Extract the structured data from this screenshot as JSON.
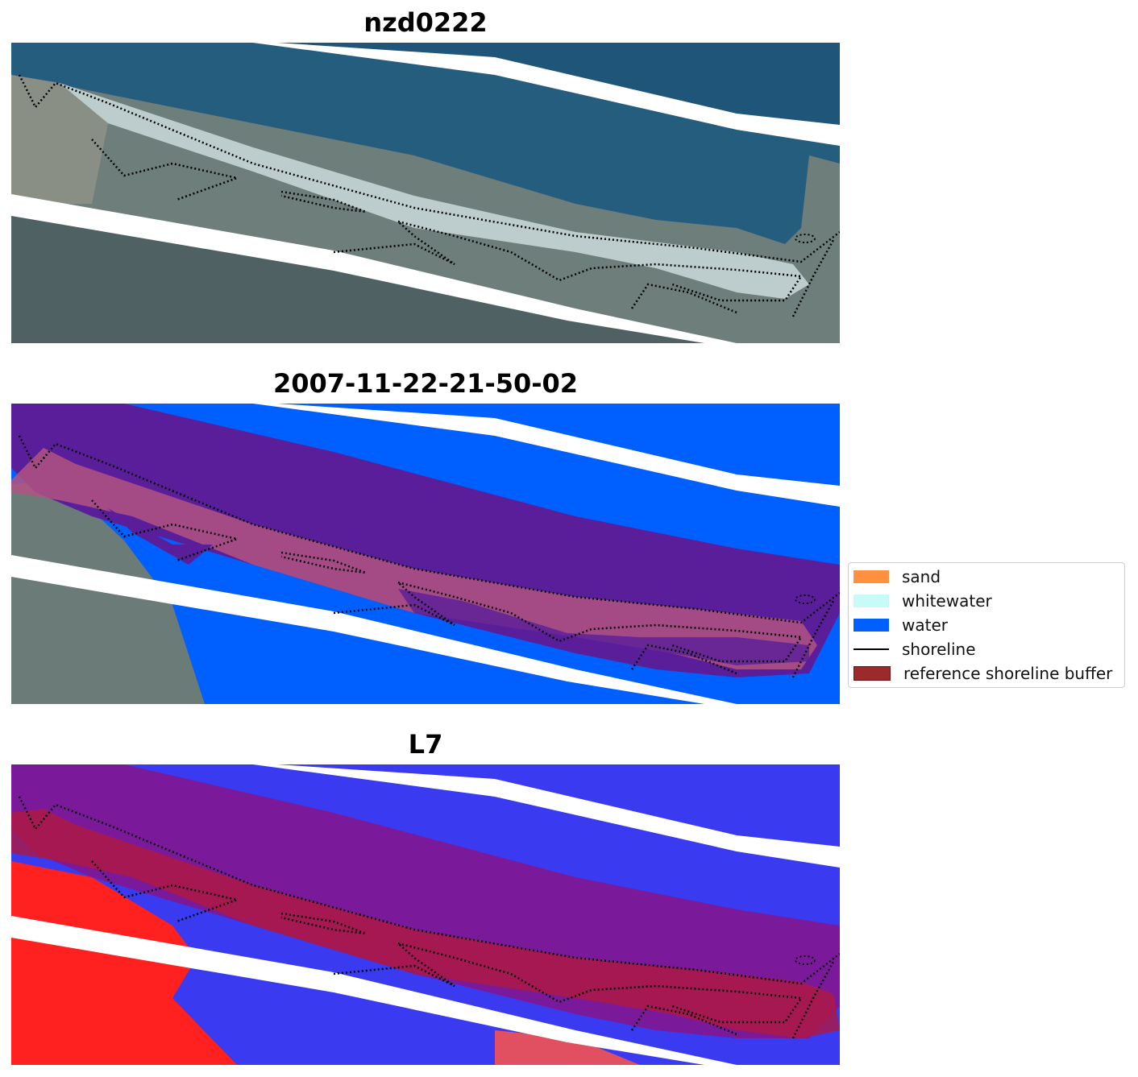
{
  "panels": [
    {
      "title": "nzd0222",
      "kind": "rgb"
    },
    {
      "title": "2007-11-22-21-50-02",
      "kind": "classified"
    },
    {
      "title": "L7",
      "kind": "index"
    }
  ],
  "legend": {
    "items": [
      {
        "label": "sand",
        "color": "#ff9040",
        "type": "patch"
      },
      {
        "label": "whitewater",
        "color": "#c8fbf7",
        "type": "patch"
      },
      {
        "label": "water",
        "color": "#0060ff",
        "type": "patch"
      },
      {
        "label": "shoreline",
        "color": "#000000",
        "type": "line"
      },
      {
        "label": "reference shoreline buffer",
        "color": "#9b2a2a",
        "type": "patch"
      }
    ]
  },
  "colors": {
    "ocean": "#1f5579",
    "land": "#6b7d7a",
    "classified_water": "#0060ff",
    "buffer_overlay": "#5a1e9a",
    "index_red": "#ff2020",
    "index_blue": "#3a3af0"
  }
}
